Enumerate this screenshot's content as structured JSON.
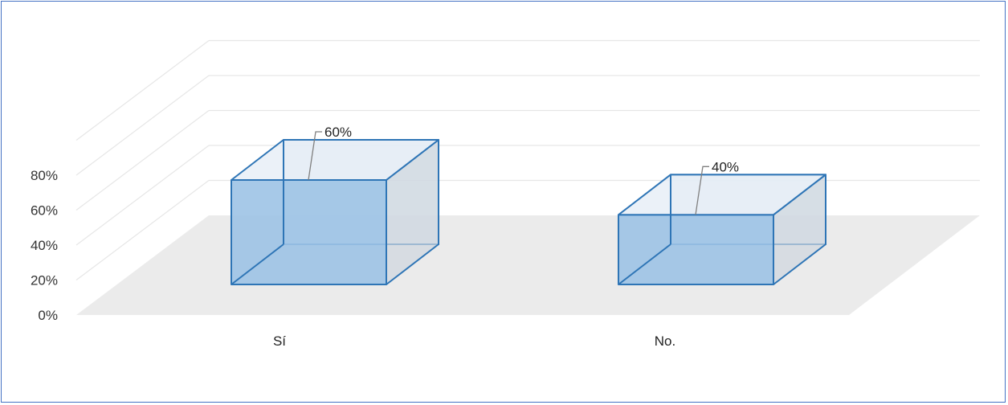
{
  "chart_data": {
    "type": "bar",
    "categories": [
      "Sí",
      "No."
    ],
    "values": [
      60,
      40
    ],
    "value_labels": [
      "60%",
      "40%"
    ],
    "y_ticks": [
      "0%",
      "20%",
      "40%",
      "60%",
      "80%"
    ],
    "ylim": [
      0,
      100
    ],
    "grid": true,
    "legend": "none",
    "colors": {
      "bar_fill": "#9dc3e6",
      "bar_edge": "#2e75b6",
      "floor": "#ebebeb",
      "grid": "#e6e6e6",
      "border": "#4472c4",
      "leader": "#7f7f7f"
    }
  }
}
